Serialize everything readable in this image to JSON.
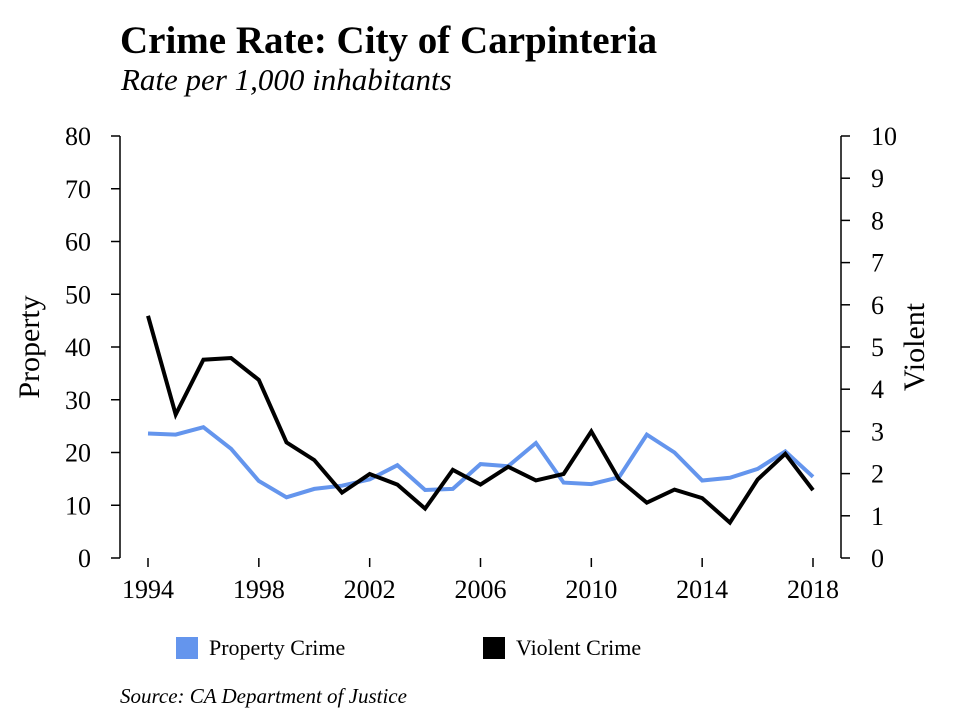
{
  "chart_data": {
    "type": "line",
    "title": "Crime Rate: City of Carpinteria",
    "subtitle": "Rate per 1,000 inhabitants",
    "xlabel": "",
    "ylabel": "Property",
    "y2label": "Violent",
    "xlim": [
      1994,
      2018
    ],
    "x_ticks": [
      "1994",
      "1998",
      "2002",
      "2006",
      "2010",
      "2014",
      "2018"
    ],
    "ylim": [
      0,
      80
    ],
    "y_ticks": [
      "0",
      "10",
      "20",
      "30",
      "40",
      "50",
      "60",
      "70",
      "80"
    ],
    "y2lim": [
      0,
      10
    ],
    "y2_ticks": [
      "0",
      "1",
      "2",
      "3",
      "4",
      "5",
      "6",
      "7",
      "8",
      "9",
      "10"
    ],
    "grid": false,
    "legend_position": "bottom",
    "x": [
      1994,
      1995,
      1996,
      1997,
      1998,
      1999,
      2000,
      2001,
      2002,
      2003,
      2004,
      2005,
      2006,
      2007,
      2008,
      2009,
      2010,
      2011,
      2012,
      2013,
      2014,
      2015,
      2016,
      2017,
      2018
    ],
    "series": [
      {
        "name": "Property Crime",
        "axis": "left",
        "color": "#6495ED",
        "values": [
          23.6,
          23.4,
          24.8,
          20.7,
          14.6,
          11.5,
          13.1,
          13.7,
          14.9,
          17.6,
          12.9,
          13.1,
          17.8,
          17.4,
          21.8,
          14.3,
          14.0,
          15.3,
          23.4,
          20.0,
          14.7,
          15.2,
          16.9,
          20.2,
          15.4
        ]
      },
      {
        "name": "Violent Crime",
        "axis": "right",
        "color": "#000000",
        "values": [
          5.74,
          3.4,
          4.7,
          4.74,
          4.22,
          2.74,
          2.32,
          1.55,
          1.99,
          1.74,
          1.17,
          2.09,
          1.74,
          2.16,
          1.84,
          1.99,
          3.0,
          1.86,
          1.31,
          1.62,
          1.42,
          0.84,
          1.86,
          2.47,
          1.61
        ]
      }
    ],
    "source": "Source: CA Department of Justice"
  }
}
